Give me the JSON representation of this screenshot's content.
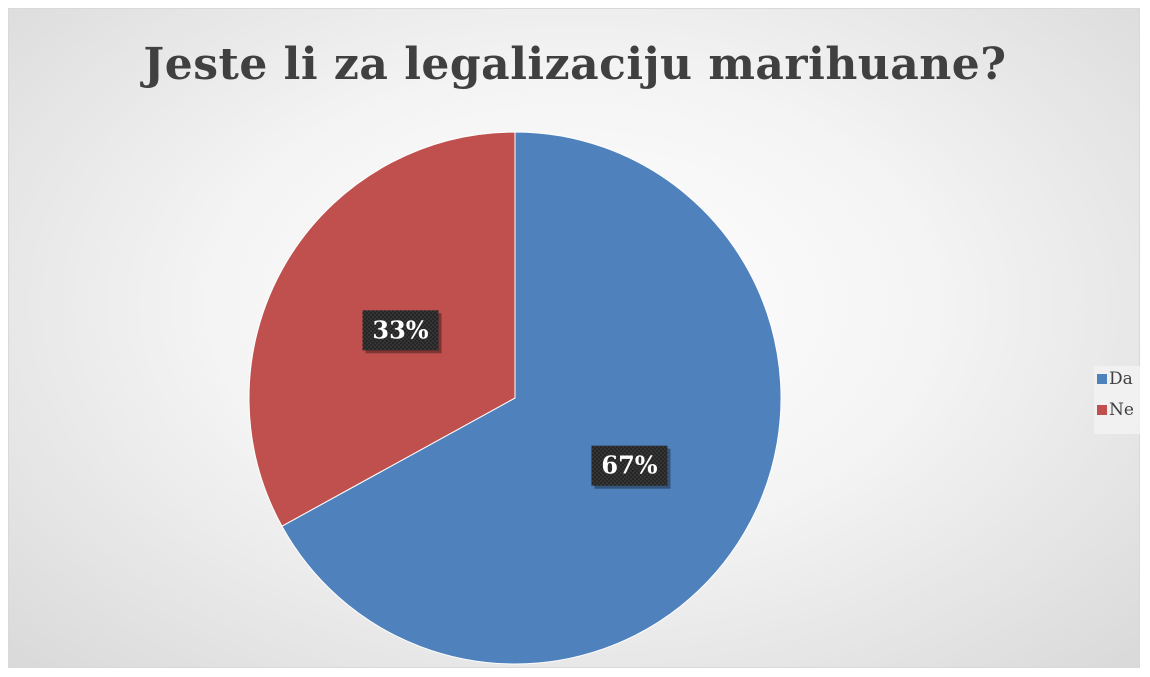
{
  "chart_data": {
    "type": "pie",
    "title": "Jeste li za legalizaciju marihuane?",
    "slices": [
      {
        "label": "Da",
        "value": 67,
        "display": "67%",
        "color": "#4f81bd"
      },
      {
        "label": "Ne",
        "value": 33,
        "display": "33%",
        "color": "#c0504d"
      }
    ],
    "start_angle_deg": 0,
    "direction": "clockwise",
    "legend_position": "right"
  }
}
